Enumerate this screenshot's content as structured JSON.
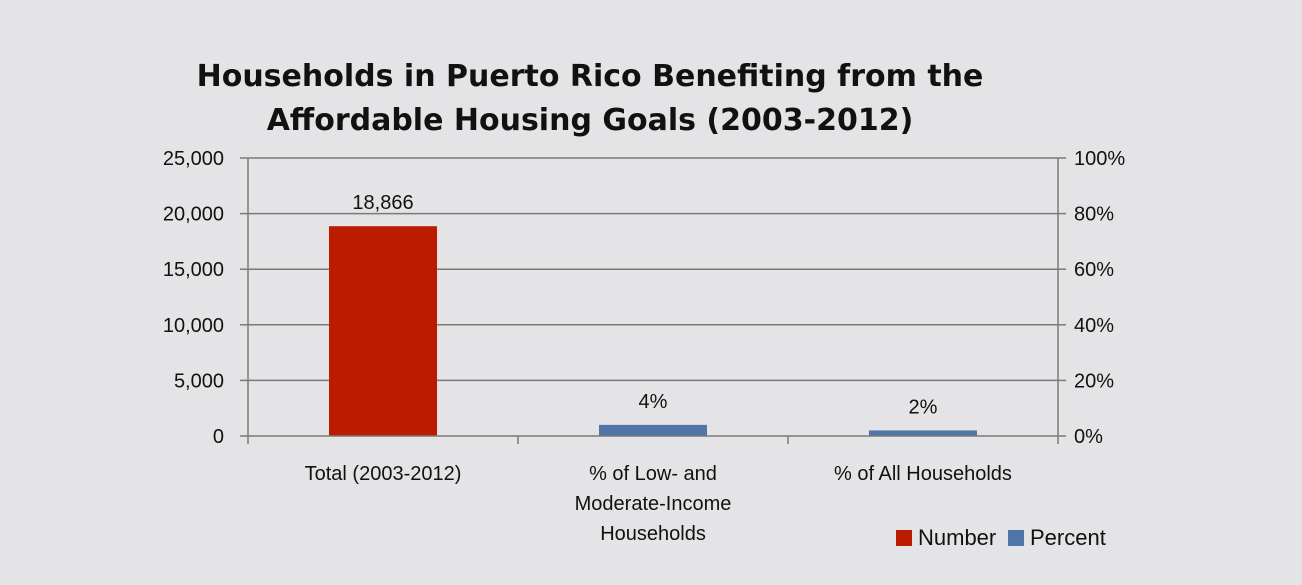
{
  "chart_data": {
    "type": "bar",
    "title_lines": [
      "Households in Puerto Rico Benefiting from the",
      "Affordable Housing Goals (2003-2012)"
    ],
    "categories": [
      [
        "Total (2003-2012)"
      ],
      [
        "% of Low- and",
        "Moderate-Income",
        "Households"
      ],
      [
        "% of All Households"
      ]
    ],
    "series": [
      {
        "name": "Number",
        "axis": "left",
        "color": "#bb1c00",
        "values": [
          18866,
          null,
          null
        ],
        "labels": [
          "18,866",
          null,
          null
        ]
      },
      {
        "name": "Percent",
        "axis": "right",
        "color": "#4f76a6",
        "values": [
          null,
          4,
          2
        ],
        "labels": [
          null,
          "4%",
          "2%"
        ]
      }
    ],
    "y_left": {
      "ylim": [
        0,
        25000
      ],
      "ticks": [
        0,
        5000,
        10000,
        15000,
        20000,
        25000
      ],
      "tick_labels": [
        "0",
        "5,000",
        "10,000",
        "15,000",
        "20,000",
        "25,000"
      ]
    },
    "y_right": {
      "ylim": [
        0,
        100
      ],
      "ticks": [
        0,
        20,
        40,
        60,
        80,
        100
      ],
      "tick_labels": [
        "0%",
        "20%",
        "40%",
        "60%",
        "80%",
        "100%"
      ]
    },
    "grid": true,
    "legend_position": "bottom-right",
    "background": "#e4e4e6"
  }
}
